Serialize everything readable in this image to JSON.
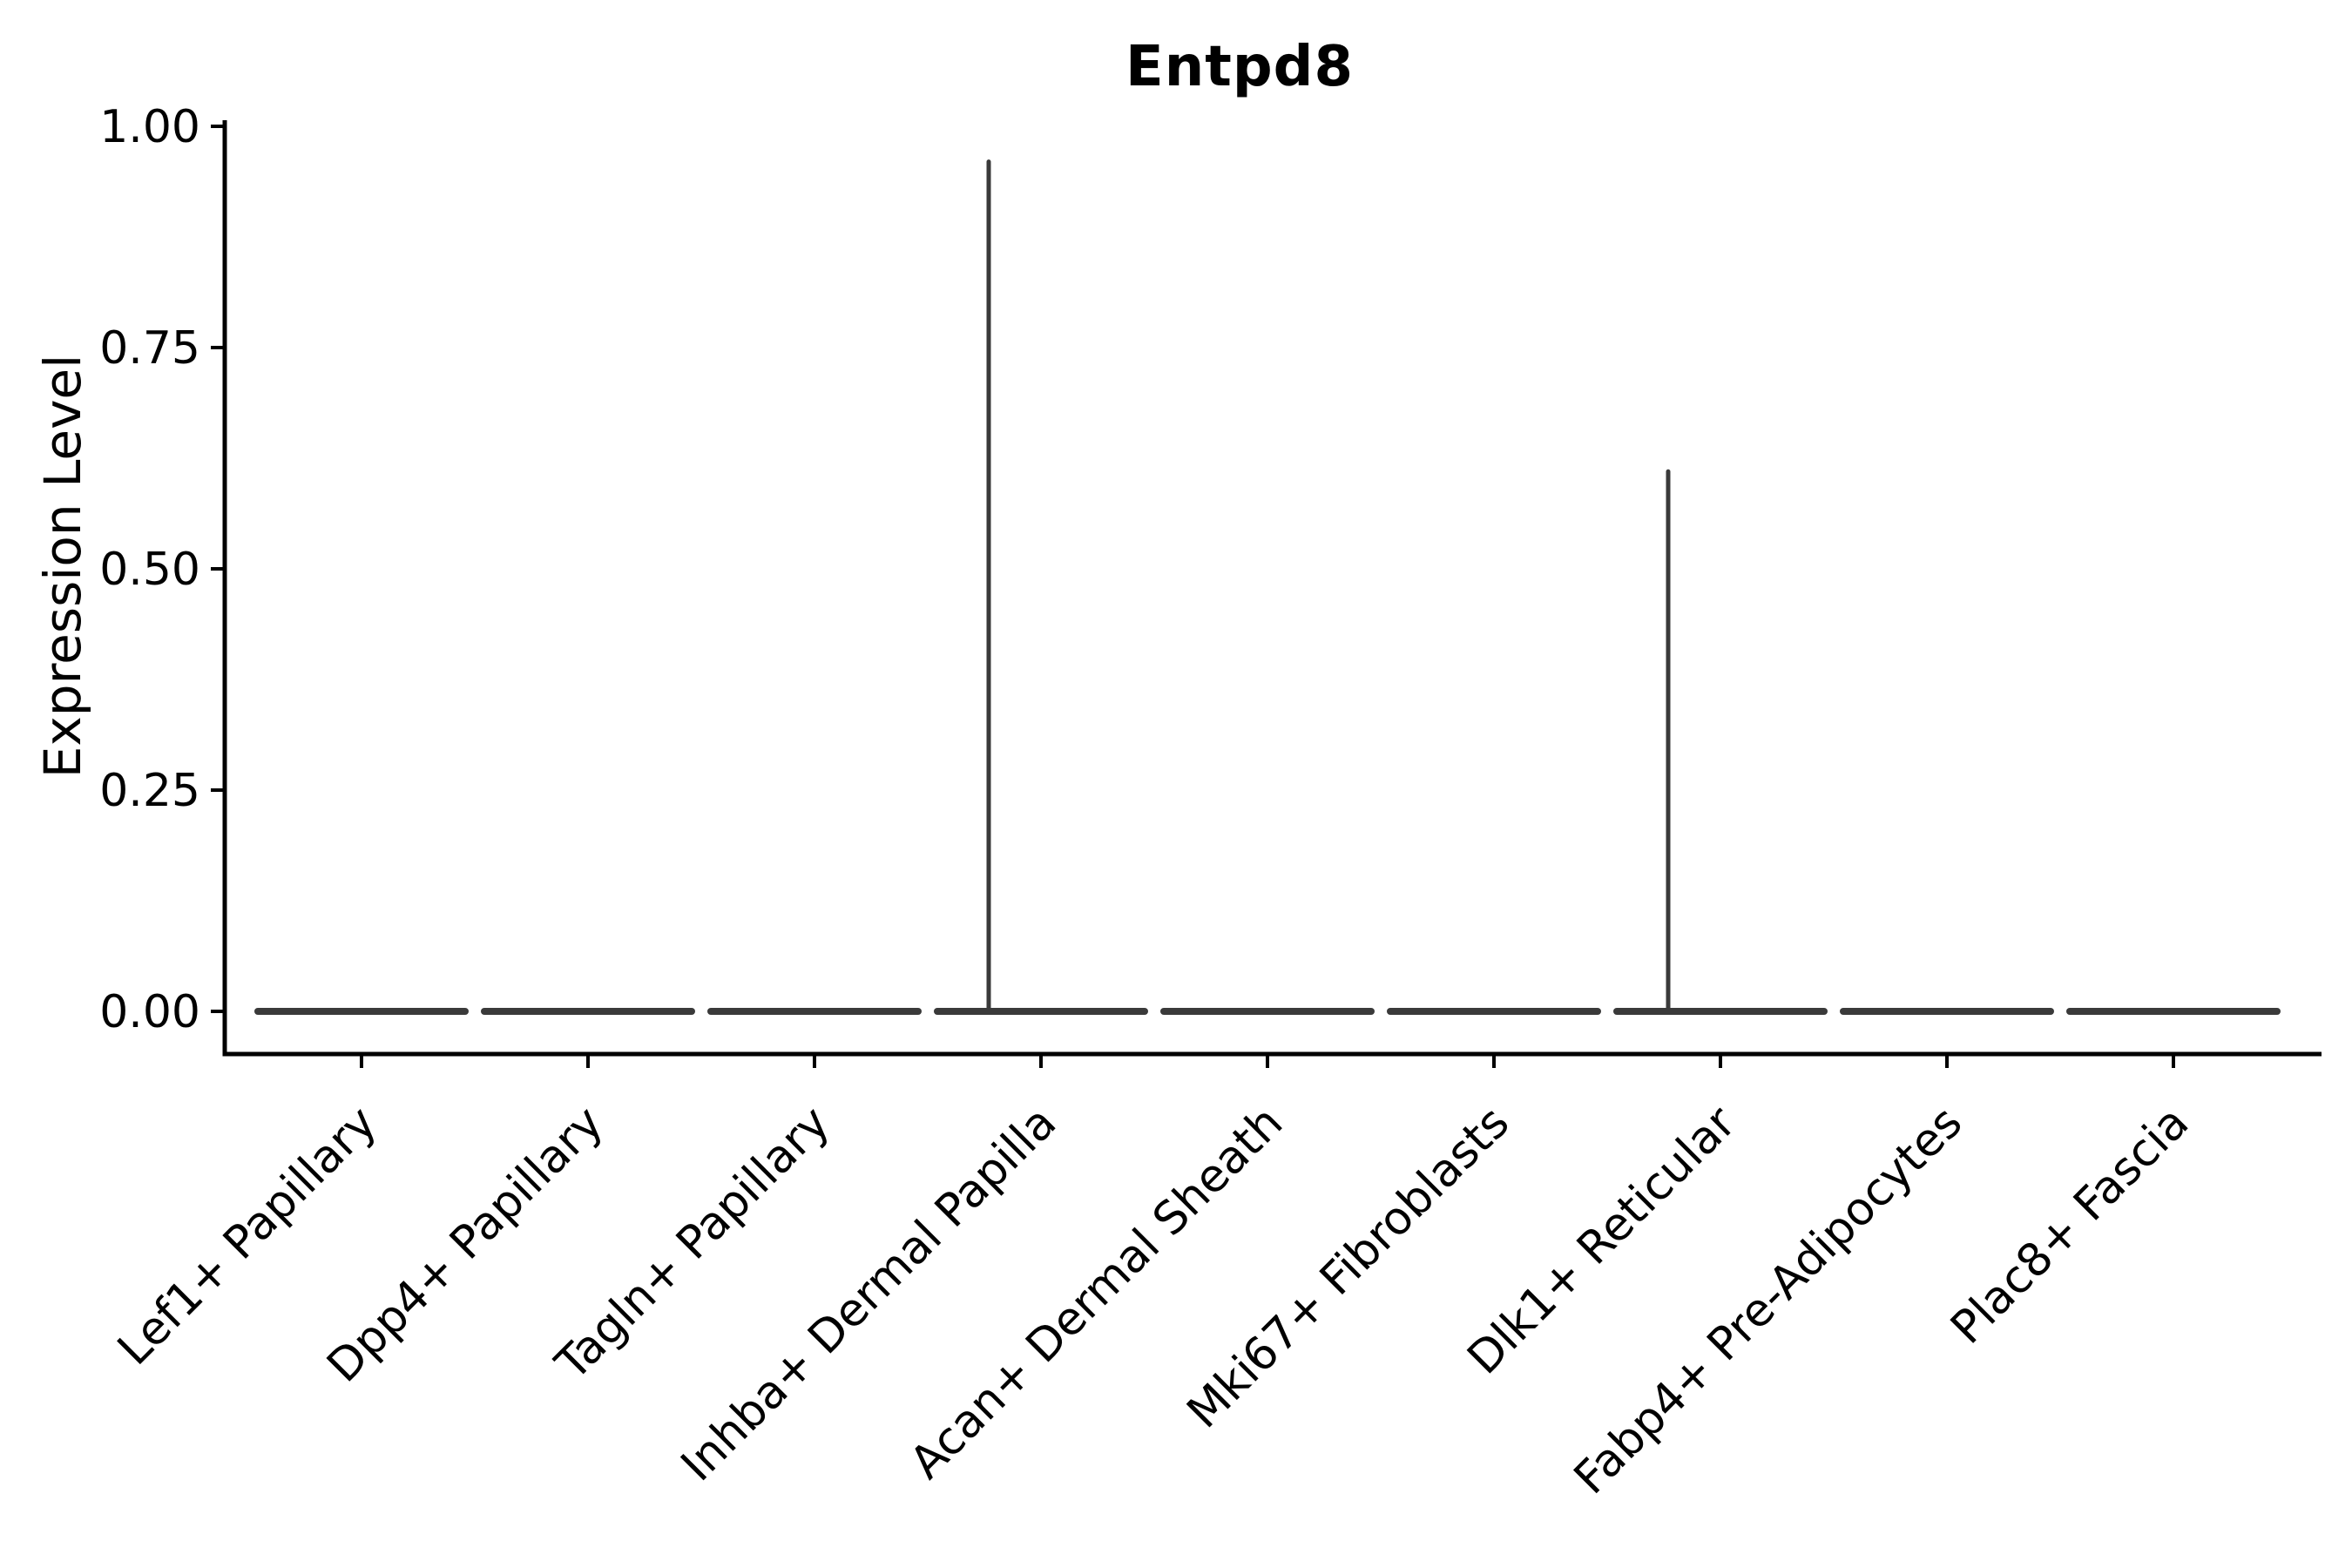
{
  "chart_data": {
    "type": "violin",
    "title": "Entpd8",
    "ylabel": "Expression Level",
    "xlabel": "",
    "categories": [
      "Lef1+ Papillary",
      "Dpp4+ Papillary",
      "Tagln+ Papillary",
      "Inhba+ Dermal Papilla",
      "Acan+ Dermal Sheath",
      "Mki67+ Fibroblasts",
      "Dlk1+ Reticular",
      "Fabp4+ Pre-Adipocytes",
      "Plac8+ Fascia"
    ],
    "series": [
      {
        "name": "Entpd8",
        "values": [
          0,
          0,
          0,
          0.96,
          0,
          0,
          0.61,
          0,
          0
        ]
      }
    ],
    "ytick_labels": [
      "0.00",
      "0.25",
      "0.50",
      "0.75",
      "1.00"
    ],
    "yticks": [
      0.0,
      0.25,
      0.5,
      0.75,
      1.0
    ],
    "ylim": [
      0.0,
      1.0
    ],
    "grid": false,
    "legend": "none",
    "colors": {
      "violin": "#3a3a3a",
      "axis": "#000000",
      "text": "#000000",
      "background": "#ffffff"
    }
  }
}
